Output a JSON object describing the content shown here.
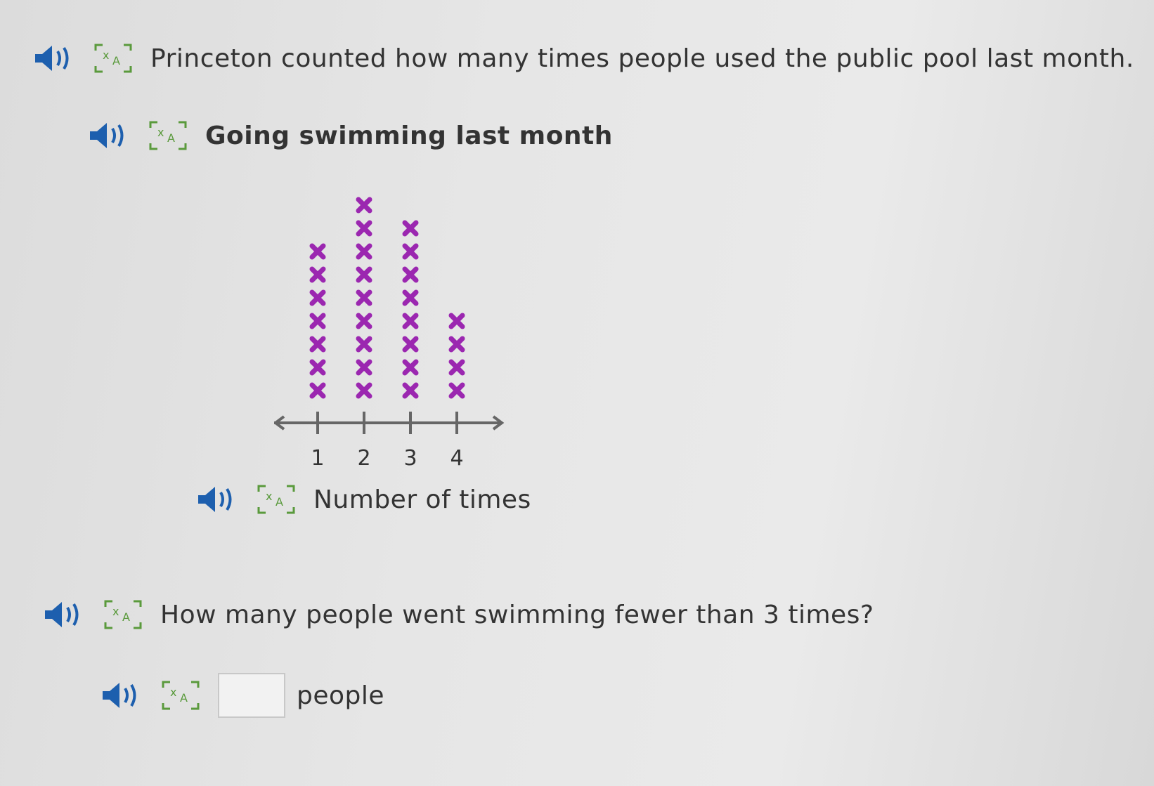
{
  "question_intro": "Princeton counted how many times people used the public pool last month.",
  "question": "How many people went swimming fewer than 3 times?",
  "answer": {
    "value": "",
    "unit": "people"
  },
  "colors": {
    "marker": "#9b27b0",
    "speaker": "#1d5fae",
    "translate": "#5a9a3c",
    "axis": "#666666"
  },
  "icons": {
    "audio": "speaker-icon",
    "translate": "translate-icon"
  },
  "chart_data": {
    "type": "dot-plot",
    "title": "Going swimming last month",
    "xlabel": "Number of times",
    "categories": [
      "1",
      "2",
      "3",
      "4"
    ],
    "values": [
      7,
      9,
      8,
      4
    ],
    "marker": "x"
  }
}
